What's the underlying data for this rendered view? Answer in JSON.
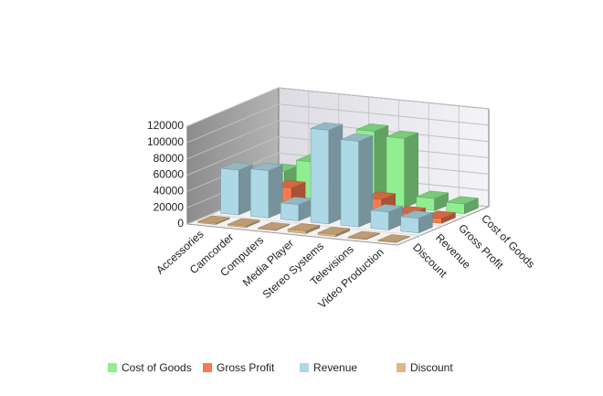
{
  "chart_data": {
    "type": "bar3d",
    "categories": [
      "Accessories",
      "Camcorder",
      "Computers",
      "Media Player",
      "Stereo Systems",
      "Televisions",
      "Video Production"
    ],
    "series": [
      {
        "name": "Cost of Goods",
        "color": "#90ee90",
        "values": [
          30000,
          45000,
          25000,
          90000,
          85000,
          15000,
          12000
        ]
      },
      {
        "name": "Gross Profit",
        "color": "#f77a4e",
        "values": [
          15000,
          25000,
          8000,
          30000,
          22000,
          8000,
          6000
        ]
      },
      {
        "name": "Revenue",
        "color": "#add8e6",
        "values": [
          55000,
          58000,
          20000,
          115000,
          105000,
          22000,
          18000
        ]
      },
      {
        "name": "Discount",
        "color": "#deb887",
        "values": [
          1500,
          1800,
          800,
          3000,
          2500,
          800,
          600
        ]
      }
    ],
    "ylim": [
      0,
      120000
    ],
    "yticks": [
      0,
      20000,
      40000,
      60000,
      80000,
      100000,
      120000
    ],
    "grid": true,
    "legend": "bottom"
  }
}
